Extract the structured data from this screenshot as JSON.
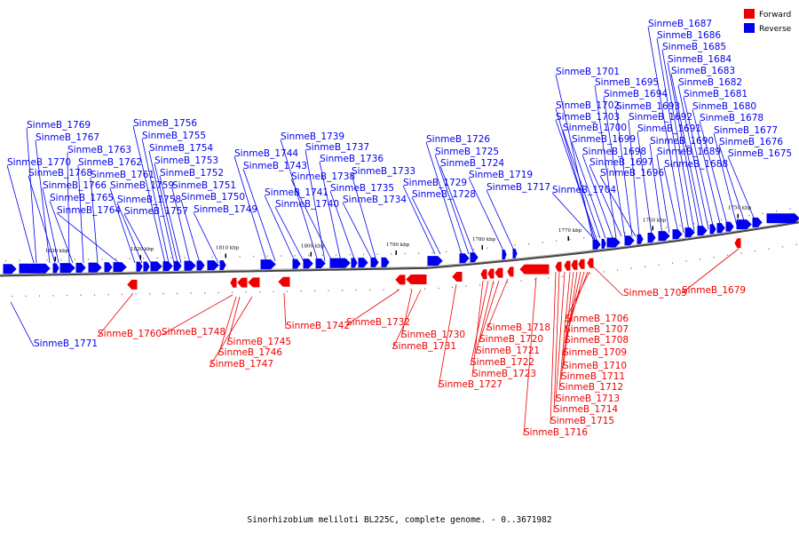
{
  "caption": "Sinorhizobium meliloti BL225C, complete genome. - 0..3671982",
  "legend": [
    {
      "label": "Forward",
      "color": "#ee0000"
    },
    {
      "label": "Reverse",
      "color": "#0000ee"
    }
  ],
  "colors": {
    "forward": "#ee0000",
    "reverse": "#0000ee",
    "backbone": "#888888"
  },
  "scale_ticks": [
    "1830 kbp",
    "1820 kbp",
    "1810 kbp",
    "1800 kbp",
    "1790 kbp",
    "1780 kbp",
    "1770 kbp",
    "1760 kbp",
    "1750 kbp"
  ],
  "reverse_genes": [
    "SinmeB_1769",
    "SinmeB_1767",
    "SinmeB_1763",
    "SinmeB_1770",
    "SinmeB_1762",
    "SinmeB_1768",
    "SinmeB_1761",
    "SinmeB_1766",
    "SinmeB_1765",
    "SinmeB_1764",
    "SinmeB_1756",
    "SinmeB_1755",
    "SinmeB_1754",
    "SinmeB_1753",
    "SinmeB_1752",
    "SinmeB_1759",
    "SinmeB_1751",
    "SinmeB_1758",
    "SinmeB_1750",
    "SinmeB_1757",
    "SinmeB_1749",
    "SinmeB_1744",
    "SinmeB_1743",
    "SinmeB_1741",
    "SinmeB_1740",
    "SinmeB_1739",
    "SinmeB_1737",
    "SinmeB_1736",
    "SinmeB_1738",
    "SinmeB_1735",
    "SinmeB_1734",
    "SinmeB_1733",
    "SinmeB_1726",
    "SinmeB_1725",
    "SinmeB_1724",
    "SinmeB_1729",
    "SinmeB_1728",
    "SinmeB_1719",
    "SinmeB_1717",
    "SinmeB_1704",
    "SinmeB_1701",
    "SinmeB_1702",
    "SinmeB_1703",
    "SinmeB_1700",
    "SinmeB_1699",
    "SinmeB_1698",
    "SinmeB_1697",
    "SinmeB_1696",
    "SinmeB_1695",
    "SinmeB_1694",
    "SinmeB_1693",
    "SinmeB_1692",
    "SinmeB_1691",
    "SinmeB_1690",
    "SinmeB_1689",
    "SinmeB_1688",
    "SinmeB_1687",
    "SinmeB_1686",
    "SinmeB_1685",
    "SinmeB_1684",
    "SinmeB_1683",
    "SinmeB_1682",
    "SinmeB_1681",
    "SinmeB_1680",
    "SinmeB_1678",
    "SinmeB_1677",
    "SinmeB_1676",
    "SinmeB_1675",
    "SinmeB_1771"
  ],
  "forward_genes": [
    "SinmeB_1760",
    "SinmeB_1748",
    "SinmeB_1745",
    "SinmeB_1746",
    "SinmeB_1747",
    "SinmeB_1742",
    "SinmeB_1732",
    "SinmeB_1730",
    "SinmeB_1731",
    "SinmeB_1727",
    "SinmeB_1723",
    "SinmeB_1722",
    "SinmeB_1721",
    "SinmeB_1720",
    "SinmeB_1718",
    "SinmeB_1716",
    "SinmeB_1715",
    "SinmeB_1714",
    "SinmeB_1713",
    "SinmeB_1712",
    "SinmeB_1711",
    "SinmeB_1710",
    "SinmeB_1709",
    "SinmeB_1708",
    "SinmeB_1707",
    "SinmeB_1706",
    "SinmeB_1705",
    "SinmeB_1679"
  ]
}
